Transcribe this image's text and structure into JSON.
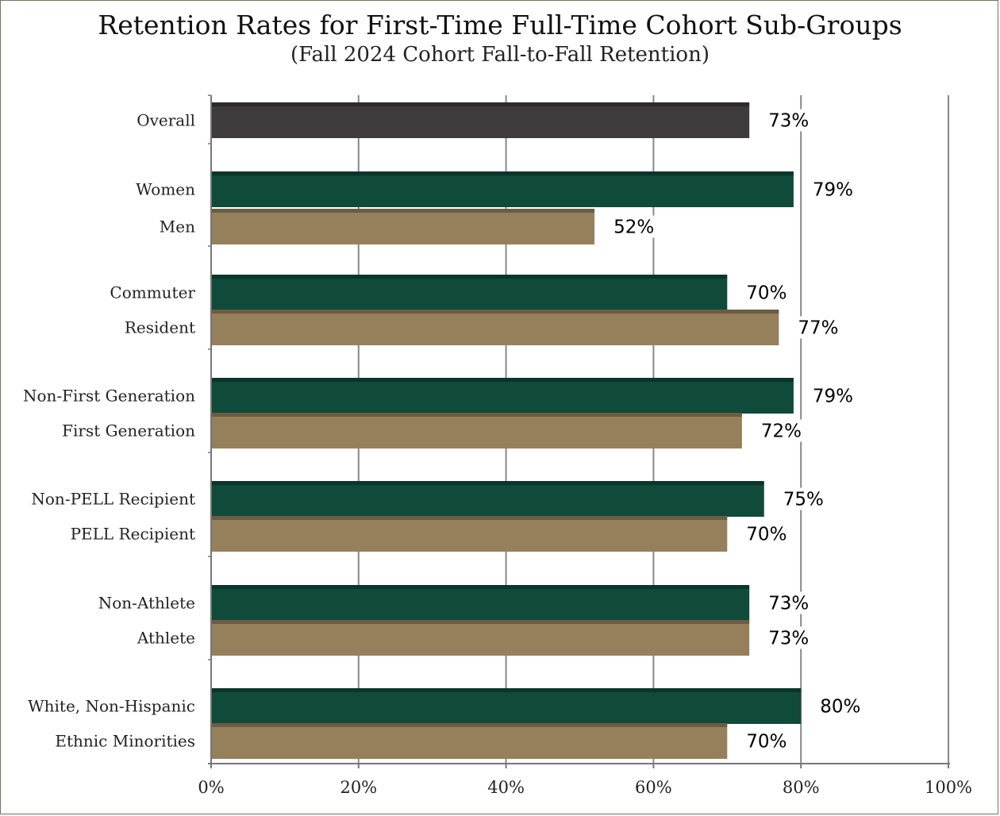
{
  "chart_data": {
    "type": "bar",
    "orientation": "horizontal",
    "title": "Retention Rates for First-Time Full-Time Cohort Sub-Groups",
    "subtitle": "(Fall 2024 Cohort Fall-to-Fall Retention)",
    "xlabel": "",
    "ylabel": "",
    "xlim": [
      0,
      100
    ],
    "x_ticks": [
      0,
      20,
      40,
      60,
      80,
      100
    ],
    "x_tick_labels": [
      "0%",
      "20%",
      "40%",
      "60%",
      "80%",
      "100%"
    ],
    "grid": true,
    "legend": "none",
    "colors": {
      "overall": "#3e3b3c",
      "group_a": "#0f4a3b",
      "group_b": "#96805c",
      "gridline": "#888888"
    },
    "bars": [
      {
        "label": "Overall",
        "value": 73,
        "value_label": "73%",
        "color_key": "overall"
      },
      {
        "label": "Women",
        "value": 79,
        "value_label": "79%",
        "color_key": "group_a"
      },
      {
        "label": "Men",
        "value": 52,
        "value_label": "52%",
        "color_key": "group_b"
      },
      {
        "label": "Commuter",
        "value": 70,
        "value_label": "70%",
        "color_key": "group_a"
      },
      {
        "label": "Resident",
        "value": 77,
        "value_label": "77%",
        "color_key": "group_b"
      },
      {
        "label": "Non-First Generation",
        "value": 79,
        "value_label": "79%",
        "color_key": "group_a"
      },
      {
        "label": "First Generation",
        "value": 72,
        "value_label": "72%",
        "color_key": "group_b"
      },
      {
        "label": "Non-PELL Recipient",
        "value": 75,
        "value_label": "75%",
        "color_key": "group_a"
      },
      {
        "label": "PELL Recipient",
        "value": 70,
        "value_label": "70%",
        "color_key": "group_b"
      },
      {
        "label": "Non-Athlete",
        "value": 73,
        "value_label": "73%",
        "color_key": "group_a"
      },
      {
        "label": "Athlete",
        "value": 73,
        "value_label": "73%",
        "color_key": "group_b"
      },
      {
        "label": "White, Non-Hispanic",
        "value": 80,
        "value_label": "80%",
        "color_key": "group_a"
      },
      {
        "label": "Ethnic Minorities",
        "value": 70,
        "value_label": "70%",
        "color_key": "group_b"
      }
    ]
  }
}
